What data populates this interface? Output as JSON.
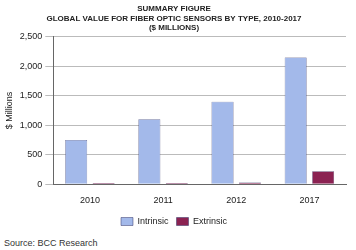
{
  "chart_data": {
    "type": "bar",
    "title": [
      "SUMMARY FIGURE",
      "GLOBAL VALUE FOR FIBER OPTIC SENSORS BY TYPE, 2010-2017",
      "($ MILLIONS)"
    ],
    "y_label": "$ Millions",
    "source": "Source: BCC Research",
    "categories": [
      "2010",
      "2011",
      "2012",
      "2017"
    ],
    "series": [
      {
        "name": "Intrinsic",
        "color": "#a3b9ea",
        "values": [
          750,
          1100,
          1400,
          2150
        ]
      },
      {
        "name": "Extrinsic",
        "color": "#8b2252",
        "values": [
          20,
          20,
          30,
          220
        ]
      }
    ],
    "ylim": [
      0,
      2500
    ],
    "yticks": [
      0,
      500,
      {
        "value": 1000,
        "label": "1,000"
      },
      {
        "value": 1500,
        "label": "1,500"
      },
      {
        "value": 2000,
        "label": "2,000"
      },
      {
        "value": 2500,
        "label": "2,500"
      }
    ],
    "grid": true,
    "legend": "bottom"
  }
}
